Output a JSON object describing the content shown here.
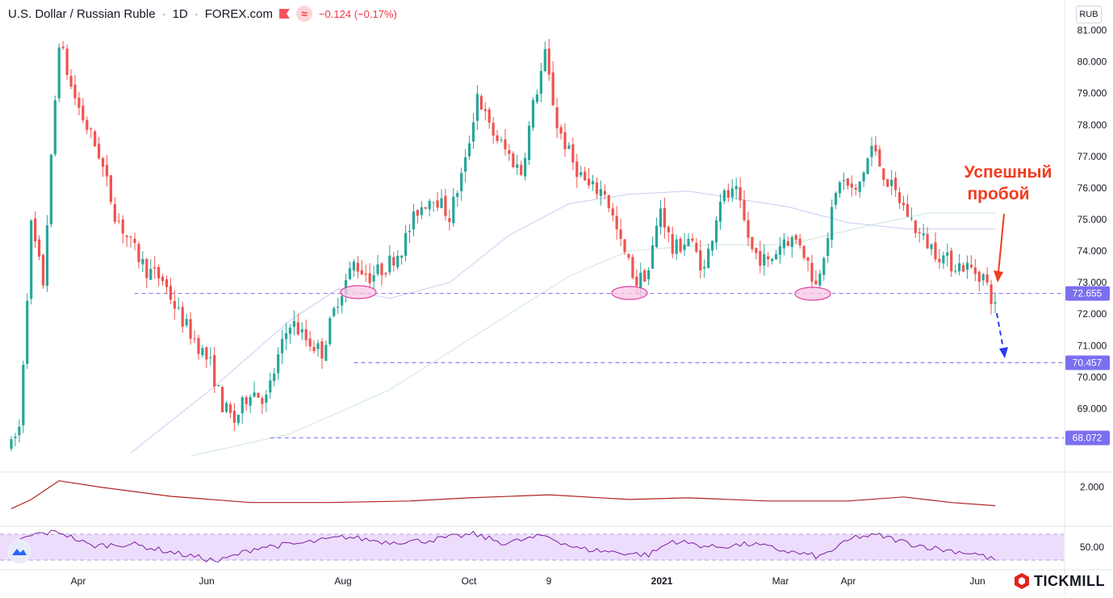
{
  "header": {
    "symbol": "U.S. Dollar / Russian Ruble",
    "interval": "1D",
    "source": "FOREX.com",
    "change": "−0.124 (−0.17%)"
  },
  "currency_label": "RUB",
  "brand": "TICKMILL",
  "annotation_text": [
    "Успешный",
    "пробой"
  ],
  "colors": {
    "up": "#26a69a",
    "down": "#ef5350",
    "level_line": "#7b6ff0",
    "annotation": "#f23c1f",
    "projection": "#2a3cf0",
    "ellipse_fill": "#f8c7e3",
    "ellipse_stroke": "#e040a0",
    "atr_line": "#b22222",
    "rsi_line": "#7b1fa2",
    "rsi_band": "#e9d5fb"
  },
  "chart_data": {
    "type": "candlestick",
    "y_axis_labels": [
      "81.000",
      "80.000",
      "79.000",
      "78.000",
      "77.000",
      "76.000",
      "75.000",
      "74.000",
      "73.000",
      "72.000",
      "71.000",
      "70.000",
      "69.000"
    ],
    "y_range": [
      67.5,
      81.5
    ],
    "x_labels": [
      "Apr",
      "Jun",
      "Aug",
      "Oct",
      "9",
      "2021",
      "Mar",
      "Apr",
      "Jun"
    ],
    "levels": [
      {
        "label": "72.655",
        "value": 72.655
      },
      {
        "label": "70.457",
        "value": 70.457
      },
      {
        "label": "68.072",
        "value": 68.072
      }
    ],
    "anchors": [
      {
        "t": 0,
        "v": 67.8
      },
      {
        "t": 2,
        "v": 68.4
      },
      {
        "t": 5,
        "v": 74.8
      },
      {
        "t": 8,
        "v": 73.0
      },
      {
        "t": 12,
        "v": 80.7
      },
      {
        "t": 15,
        "v": 79.2
      },
      {
        "t": 18,
        "v": 78.2
      },
      {
        "t": 22,
        "v": 77.1
      },
      {
        "t": 26,
        "v": 75.2
      },
      {
        "t": 30,
        "v": 74.2
      },
      {
        "t": 34,
        "v": 73.4
      },
      {
        "t": 38,
        "v": 73.1
      },
      {
        "t": 42,
        "v": 72.0
      },
      {
        "t": 46,
        "v": 71.2
      },
      {
        "t": 50,
        "v": 70.4
      },
      {
        "t": 53,
        "v": 69.1
      },
      {
        "t": 56,
        "v": 68.6
      },
      {
        "t": 60,
        "v": 69.6
      },
      {
        "t": 64,
        "v": 69.3
      },
      {
        "t": 67,
        "v": 70.6
      },
      {
        "t": 70,
        "v": 71.8
      },
      {
        "t": 74,
        "v": 71.2
      },
      {
        "t": 78,
        "v": 70.8
      },
      {
        "t": 82,
        "v": 72.5
      },
      {
        "t": 86,
        "v": 73.6
      },
      {
        "t": 90,
        "v": 73.2
      },
      {
        "t": 94,
        "v": 73.5
      },
      {
        "t": 98,
        "v": 74.1
      },
      {
        "t": 102,
        "v": 75.3
      },
      {
        "t": 106,
        "v": 75.8
      },
      {
        "t": 110,
        "v": 75.1
      },
      {
        "t": 114,
        "v": 76.8
      },
      {
        "t": 117,
        "v": 79.0
      },
      {
        "t": 120,
        "v": 77.9
      },
      {
        "t": 124,
        "v": 77.2
      },
      {
        "t": 128,
        "v": 76.5
      },
      {
        "t": 131,
        "v": 78.6
      },
      {
        "t": 134,
        "v": 80.2
      },
      {
        "t": 137,
        "v": 78.0
      },
      {
        "t": 141,
        "v": 76.8
      },
      {
        "t": 145,
        "v": 76.0
      },
      {
        "t": 149,
        "v": 75.9
      },
      {
        "t": 153,
        "v": 74.2
      },
      {
        "t": 157,
        "v": 73.0
      },
      {
        "t": 160,
        "v": 73.4
      },
      {
        "t": 163,
        "v": 75.4
      },
      {
        "t": 166,
        "v": 74.0
      },
      {
        "t": 170,
        "v": 74.4
      },
      {
        "t": 174,
        "v": 73.4
      },
      {
        "t": 178,
        "v": 75.7
      },
      {
        "t": 182,
        "v": 75.8
      },
      {
        "t": 186,
        "v": 74.0
      },
      {
        "t": 190,
        "v": 73.6
      },
      {
        "t": 194,
        "v": 74.4
      },
      {
        "t": 198,
        "v": 74.3
      },
      {
        "t": 202,
        "v": 72.9
      },
      {
        "t": 205,
        "v": 74.6
      },
      {
        "t": 208,
        "v": 76.3
      },
      {
        "t": 212,
        "v": 75.8
      },
      {
        "t": 216,
        "v": 77.3
      },
      {
        "t": 220,
        "v": 76.2
      },
      {
        "t": 224,
        "v": 75.4
      },
      {
        "t": 228,
        "v": 74.5
      },
      {
        "t": 232,
        "v": 74.0
      },
      {
        "t": 236,
        "v": 73.6
      },
      {
        "t": 240,
        "v": 73.5
      },
      {
        "t": 244,
        "v": 73.2
      },
      {
        "t": 247,
        "v": 72.2
      }
    ],
    "ma_fast": [
      {
        "t": 30,
        "v": 67.6
      },
      {
        "t": 50,
        "v": 69.6
      },
      {
        "t": 70,
        "v": 71.8
      },
      {
        "t": 82,
        "v": 72.8
      },
      {
        "t": 95,
        "v": 72.5
      },
      {
        "t": 110,
        "v": 73.0
      },
      {
        "t": 125,
        "v": 74.5
      },
      {
        "t": 140,
        "v": 75.5
      },
      {
        "t": 155,
        "v": 75.8
      },
      {
        "t": 170,
        "v": 75.9
      },
      {
        "t": 180,
        "v": 75.7
      },
      {
        "t": 195,
        "v": 75.4
      },
      {
        "t": 210,
        "v": 74.9
      },
      {
        "t": 225,
        "v": 74.7
      },
      {
        "t": 247,
        "v": 74.7
      }
    ],
    "ma_slow": [
      {
        "t": 45,
        "v": 67.5
      },
      {
        "t": 70,
        "v": 68.2
      },
      {
        "t": 95,
        "v": 69.6
      },
      {
        "t": 120,
        "v": 71.6
      },
      {
        "t": 140,
        "v": 73.2
      },
      {
        "t": 155,
        "v": 74.0
      },
      {
        "t": 175,
        "v": 74.2
      },
      {
        "t": 195,
        "v": 74.2
      },
      {
        "t": 215,
        "v": 74.8
      },
      {
        "t": 230,
        "v": 75.2
      },
      {
        "t": 247,
        "v": 75.2
      }
    ],
    "atr": {
      "label": "2.000",
      "points": [
        {
          "t": 0,
          "v": 1.3
        },
        {
          "t": 5,
          "v": 1.6
        },
        {
          "t": 12,
          "v": 2.2
        },
        {
          "t": 22,
          "v": 2.0
        },
        {
          "t": 40,
          "v": 1.7
        },
        {
          "t": 60,
          "v": 1.5
        },
        {
          "t": 80,
          "v": 1.5
        },
        {
          "t": 100,
          "v": 1.55
        },
        {
          "t": 115,
          "v": 1.65
        },
        {
          "t": 135,
          "v": 1.75
        },
        {
          "t": 155,
          "v": 1.6
        },
        {
          "t": 170,
          "v": 1.65
        },
        {
          "t": 190,
          "v": 1.55
        },
        {
          "t": 210,
          "v": 1.55
        },
        {
          "t": 224,
          "v": 1.68
        },
        {
          "t": 236,
          "v": 1.5
        },
        {
          "t": 247,
          "v": 1.4
        }
      ]
    },
    "rsi": {
      "label": "50.00",
      "points": [
        {
          "t": 0,
          "v": 55
        },
        {
          "t": 6,
          "v": 70
        },
        {
          "t": 12,
          "v": 74
        },
        {
          "t": 20,
          "v": 52
        },
        {
          "t": 30,
          "v": 55
        },
        {
          "t": 42,
          "v": 40
        },
        {
          "t": 52,
          "v": 28
        },
        {
          "t": 62,
          "v": 50
        },
        {
          "t": 72,
          "v": 55
        },
        {
          "t": 84,
          "v": 66
        },
        {
          "t": 94,
          "v": 58
        },
        {
          "t": 104,
          "v": 60
        },
        {
          "t": 116,
          "v": 70
        },
        {
          "t": 124,
          "v": 56
        },
        {
          "t": 134,
          "v": 68
        },
        {
          "t": 142,
          "v": 48
        },
        {
          "t": 152,
          "v": 42
        },
        {
          "t": 160,
          "v": 38
        },
        {
          "t": 166,
          "v": 60
        },
        {
          "t": 176,
          "v": 50
        },
        {
          "t": 186,
          "v": 55
        },
        {
          "t": 196,
          "v": 42
        },
        {
          "t": 203,
          "v": 35
        },
        {
          "t": 212,
          "v": 66
        },
        {
          "t": 218,
          "v": 68
        },
        {
          "t": 226,
          "v": 55
        },
        {
          "t": 234,
          "v": 46
        },
        {
          "t": 242,
          "v": 40
        },
        {
          "t": 247,
          "v": 30
        }
      ]
    }
  }
}
